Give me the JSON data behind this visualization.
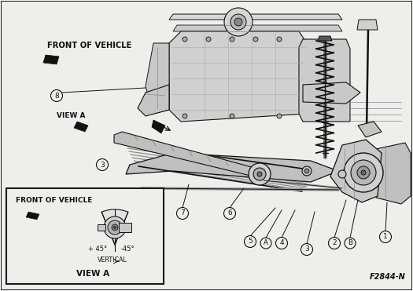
{
  "ref_code": "F2844-N",
  "main_bg": "#ffffff",
  "border_color": "#1a1a1a",
  "text_color": "#111111",
  "gray_light": "#e8e8e8",
  "gray_mid": "#c8c8c8",
  "gray_dark": "#888888",
  "front_of_vehicle_text": "FRONT OF VEHICLE",
  "view_a_text": "VIEW A",
  "vertical_text": "VERTICAL",
  "inset_title": "VIEW A",
  "inset_front_of_vehicle": "FRONT OF VEHICLE",
  "plus45": "+ 45°",
  "minus45": "-45°",
  "img_bg": "#f0eeea",
  "inset_bg": "#f0eeea",
  "callout_bg": "#f0eeea"
}
